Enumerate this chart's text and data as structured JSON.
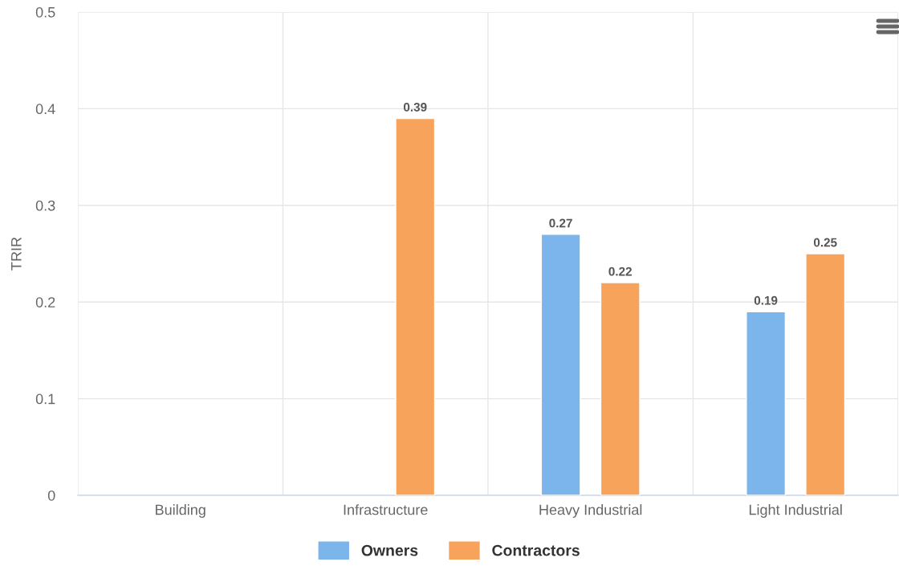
{
  "chart_data": {
    "type": "bar",
    "ylabel": "TRIR",
    "categories": [
      "Building",
      "Infrastructure",
      "Heavy Industrial",
      "Light Industrial"
    ],
    "series": [
      {
        "name": "Owners",
        "color": "#7cb5ec",
        "values": [
          null,
          null,
          0.27,
          0.19
        ]
      },
      {
        "name": "Contractors",
        "color": "#f7a35c",
        "values": [
          null,
          0.39,
          0.22,
          0.25
        ]
      }
    ],
    "ylim": [
      0,
      0.5
    ],
    "yticks": [
      0,
      0.1,
      0.2,
      0.3,
      0.4,
      0.5
    ],
    "grid": true,
    "legend": "bottom",
    "data_labels": true
  }
}
